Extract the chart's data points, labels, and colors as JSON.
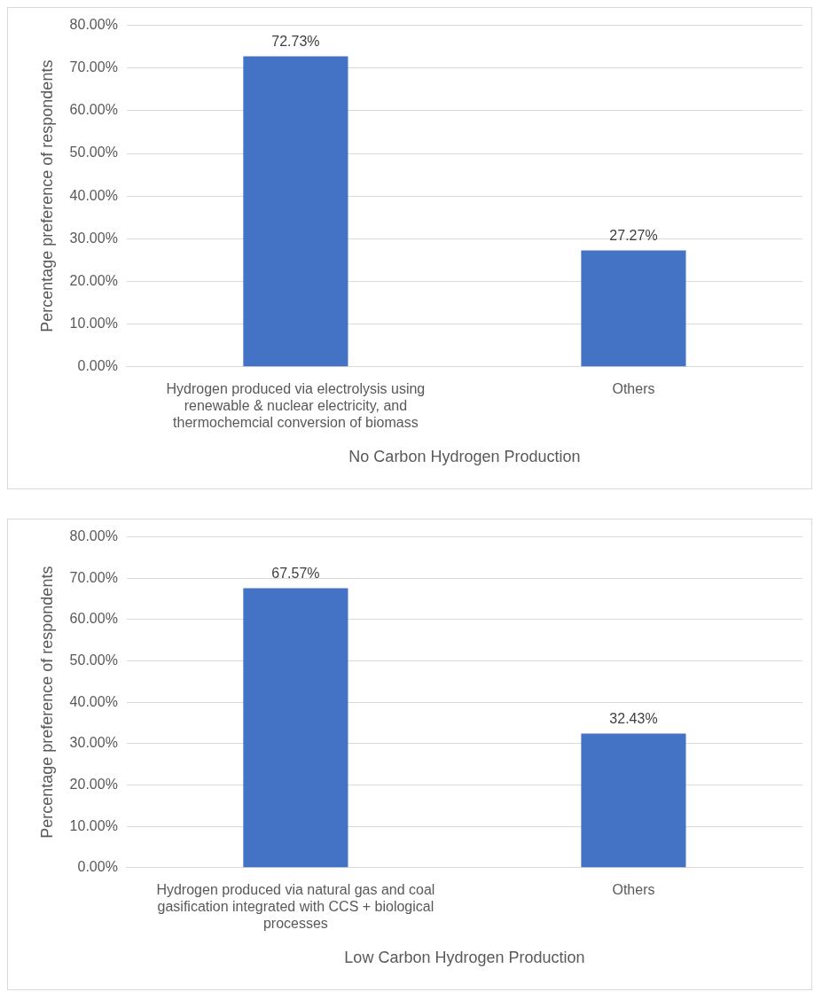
{
  "chart_data": [
    {
      "type": "bar",
      "categories": [
        "Hydrogen produced via electrolysis using renewable & nuclear electricity, and thermochemcial conversion of biomass",
        "Others"
      ],
      "values": [
        72.73,
        27.27
      ],
      "value_labels": [
        "72.73%",
        "27.27%"
      ],
      "color": "#4472c4",
      "xlabel": "No Carbon Hydrogen Production",
      "ylabel": "Percentage preference of respondents",
      "ylim": [
        0,
        80
      ],
      "yticks": [
        {
          "value": 0,
          "label": "0.00%"
        },
        {
          "value": 10,
          "label": "10.00%"
        },
        {
          "value": 20,
          "label": "20.00%"
        },
        {
          "value": 30,
          "label": "30.00%"
        },
        {
          "value": 40,
          "label": "40.00%"
        },
        {
          "value": 50,
          "label": "50.00%"
        },
        {
          "value": 60,
          "label": "60.00%"
        },
        {
          "value": 70,
          "label": "70.00%"
        },
        {
          "value": 80,
          "label": "80.00%"
        }
      ],
      "grid": "y",
      "legend": false
    },
    {
      "type": "bar",
      "categories": [
        "Hydrogen produced via natural gas and coal gasification integrated with CCS + biological processes",
        "Others"
      ],
      "values": [
        67.57,
        32.43
      ],
      "value_labels": [
        "67.57%",
        "32.43%"
      ],
      "color": "#4472c4",
      "xlabel": "Low Carbon Hydrogen Production",
      "ylabel": "Percentage preference of respondents",
      "ylim": [
        0,
        80
      ],
      "yticks": [
        {
          "value": 0,
          "label": "0.00%"
        },
        {
          "value": 10,
          "label": "10.00%"
        },
        {
          "value": 20,
          "label": "20.00%"
        },
        {
          "value": 30,
          "label": "30.00%"
        },
        {
          "value": 40,
          "label": "40.00%"
        },
        {
          "value": 50,
          "label": "50.00%"
        },
        {
          "value": 60,
          "label": "60.00%"
        },
        {
          "value": 70,
          "label": "70.00%"
        },
        {
          "value": 80,
          "label": "80.00%"
        }
      ],
      "grid": "y",
      "legend": false
    }
  ]
}
